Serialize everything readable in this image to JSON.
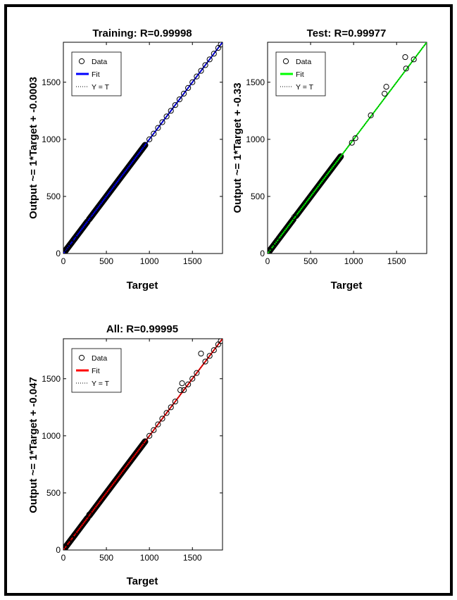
{
  "chart_data": [
    {
      "type": "scatter",
      "title": "Training: R=0.99998",
      "xlabel": "Target",
      "ylabel": "Output ~= 1*Target + -0.0003",
      "xlim": [
        0,
        1850
      ],
      "ylim": [
        0,
        1850
      ],
      "xticks": [
        0,
        500,
        1000,
        1500
      ],
      "yticks": [
        0,
        500,
        1000,
        1500
      ],
      "fit_color": "#0000ff",
      "fit_slope": 1,
      "fit_intercept": -0.0003,
      "legend": {
        "placement": "top-left",
        "data_label": "Data",
        "fit_label": "Fit",
        "yt_label": "Y = T"
      },
      "points": {
        "dense_ranges": [
          [
            0,
            130
          ],
          [
            130,
            280
          ],
          [
            300,
            950
          ]
        ],
        "x": [
          0,
          15,
          40,
          60,
          90,
          130,
          300,
          950,
          1000,
          1050,
          1100,
          1150,
          1200,
          1250,
          1300,
          1350,
          1400,
          1450,
          1500,
          1550,
          1600,
          1650,
          1700,
          1750,
          1800,
          1830
        ]
      }
    },
    {
      "type": "scatter",
      "title": "Test: R=0.99977",
      "xlabel": "Target",
      "ylabel": "Output ~= 1*Target + -0.33",
      "xlim": [
        0,
        1850
      ],
      "ylim": [
        0,
        1850
      ],
      "xticks": [
        0,
        500,
        1000,
        1500
      ],
      "yticks": [
        0,
        500,
        1000,
        1500
      ],
      "fit_color": "#00ff00",
      "fit_slope": 1,
      "fit_intercept": -0.33,
      "legend": {
        "placement": "top-left",
        "data_label": "Data",
        "fit_label": "Fit",
        "yt_label": "Y = T"
      },
      "points": {
        "dense_ranges": [
          [
            0,
            120
          ],
          [
            130,
            300
          ],
          [
            330,
            850
          ]
        ],
        "x": [
          5,
          20,
          60,
          90,
          110,
          310,
          980,
          1020,
          1200,
          1360,
          1380,
          1600,
          1610,
          1700
        ],
        "y": [
          5,
          20,
          60,
          90,
          110,
          320,
          970,
          1010,
          1210,
          1400,
          1460,
          1720,
          1620,
          1700
        ]
      }
    },
    {
      "type": "scatter",
      "title": "All: R=0.99995",
      "xlabel": "Target",
      "ylabel": "Output ~= 1*Target + -0.047",
      "xlim": [
        0,
        1850
      ],
      "ylim": [
        0,
        1850
      ],
      "xticks": [
        0,
        500,
        1000,
        1500
      ],
      "yticks": [
        0,
        500,
        1000,
        1500
      ],
      "fit_color": "#ff0000",
      "fit_slope": 1,
      "fit_intercept": -0.047,
      "legend": {
        "placement": "top-left",
        "data_label": "Data",
        "fit_label": "Fit",
        "yt_label": "Y = T"
      },
      "points": {
        "dense_ranges": [
          [
            0,
            130
          ],
          [
            130,
            280
          ],
          [
            300,
            950
          ]
        ],
        "x": [
          0,
          20,
          60,
          100,
          130,
          300,
          950,
          1000,
          1050,
          1100,
          1150,
          1200,
          1250,
          1300,
          1360,
          1380,
          1400,
          1450,
          1500,
          1550,
          1600,
          1650,
          1700,
          1750,
          1800,
          1830
        ],
        "y": [
          0,
          20,
          60,
          100,
          130,
          310,
          950,
          1000,
          1050,
          1100,
          1150,
          1200,
          1250,
          1300,
          1400,
          1460,
          1400,
          1450,
          1500,
          1550,
          1720,
          1650,
          1700,
          1750,
          1800,
          1830
        ]
      }
    }
  ]
}
